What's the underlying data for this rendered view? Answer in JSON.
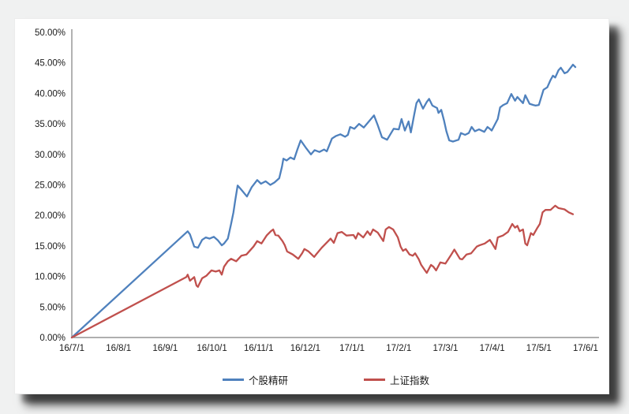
{
  "chart_data": {
    "type": "line",
    "title": "",
    "x_unit": "months since 16/7/1",
    "x_axis": {
      "tick_labels": [
        "16/7/1",
        "16/8/1",
        "16/9/1",
        "16/10/1",
        "16/11/1",
        "16/12/1",
        "17/1/1",
        "17/2/1",
        "17/3/1",
        "17/4/1",
        "17/5/1",
        "17/6/1"
      ],
      "range_months": [
        0,
        11
      ]
    },
    "y_axis": {
      "tick_labels": [
        "0.00%",
        "5.00%",
        "10.00%",
        "15.00%",
        "20.00%",
        "25.00%",
        "30.00%",
        "35.00%",
        "40.00%",
        "45.00%",
        "50.00%"
      ],
      "min": 0,
      "max": 50,
      "step": 5,
      "unit": "%"
    },
    "grid": "off",
    "axis_color": "#7f7f7f",
    "legend_position": "bottom",
    "series": [
      {
        "name": "个股精研",
        "color": "#4F81BD",
        "points": [
          [
            0,
            0
          ],
          [
            2.48,
            17.4
          ],
          [
            2.53,
            16.9
          ],
          [
            2.62,
            14.9
          ],
          [
            2.7,
            14.7
          ],
          [
            2.79,
            16.0
          ],
          [
            2.87,
            16.4
          ],
          [
            2.95,
            16.2
          ],
          [
            3.04,
            16.5
          ],
          [
            3.13,
            15.9
          ],
          [
            3.21,
            15.1
          ],
          [
            3.26,
            15.4
          ],
          [
            3.34,
            16.2
          ],
          [
            3.41,
            18.6
          ],
          [
            3.46,
            20.5
          ],
          [
            3.5,
            22.5
          ],
          [
            3.55,
            24.9
          ],
          [
            3.62,
            24.3
          ],
          [
            3.75,
            23.1
          ],
          [
            3.85,
            24.6
          ],
          [
            3.97,
            25.8
          ],
          [
            4.05,
            25.2
          ],
          [
            4.15,
            25.6
          ],
          [
            4.25,
            25.0
          ],
          [
            4.34,
            25.4
          ],
          [
            4.44,
            26.1
          ],
          [
            4.5,
            28.0
          ],
          [
            4.53,
            29.3
          ],
          [
            4.6,
            29.0
          ],
          [
            4.68,
            29.5
          ],
          [
            4.76,
            29.2
          ],
          [
            4.83,
            30.8
          ],
          [
            4.9,
            32.3
          ],
          [
            5.02,
            31.0
          ],
          [
            5.12,
            30.0
          ],
          [
            5.2,
            30.7
          ],
          [
            5.3,
            30.4
          ],
          [
            5.4,
            30.8
          ],
          [
            5.46,
            30.5
          ],
          [
            5.57,
            32.6
          ],
          [
            5.65,
            33.0
          ],
          [
            5.75,
            33.3
          ],
          [
            5.85,
            32.9
          ],
          [
            5.91,
            33.2
          ],
          [
            5.96,
            34.5
          ],
          [
            6.05,
            34.2
          ],
          [
            6.15,
            35.0
          ],
          [
            6.25,
            34.4
          ],
          [
            6.35,
            35.3
          ],
          [
            6.47,
            36.4
          ],
          [
            6.55,
            34.8
          ],
          [
            6.64,
            32.8
          ],
          [
            6.75,
            32.4
          ],
          [
            6.89,
            34.2
          ],
          [
            7.0,
            34.1
          ],
          [
            7.06,
            35.8
          ],
          [
            7.13,
            33.9
          ],
          [
            7.21,
            35.4
          ],
          [
            7.26,
            33.6
          ],
          [
            7.33,
            36.5
          ],
          [
            7.38,
            38.4
          ],
          [
            7.43,
            39.0
          ],
          [
            7.52,
            37.5
          ],
          [
            7.6,
            38.6
          ],
          [
            7.65,
            39.1
          ],
          [
            7.72,
            38.0
          ],
          [
            7.82,
            37.6
          ],
          [
            7.85,
            36.8
          ],
          [
            7.91,
            37.3
          ],
          [
            7.97,
            35.5
          ],
          [
            8.02,
            33.8
          ],
          [
            8.08,
            32.3
          ],
          [
            8.16,
            32.1
          ],
          [
            8.28,
            32.4
          ],
          [
            8.33,
            33.5
          ],
          [
            8.42,
            33.2
          ],
          [
            8.5,
            33.5
          ],
          [
            8.56,
            34.5
          ],
          [
            8.63,
            33.8
          ],
          [
            8.72,
            34.1
          ],
          [
            8.83,
            33.7
          ],
          [
            8.9,
            34.5
          ],
          [
            8.95,
            34.2
          ],
          [
            8.99,
            33.9
          ],
          [
            9.12,
            35.8
          ],
          [
            9.17,
            37.7
          ],
          [
            9.24,
            38.1
          ],
          [
            9.32,
            38.4
          ],
          [
            9.41,
            39.9
          ],
          [
            9.49,
            38.8
          ],
          [
            9.54,
            39.4
          ],
          [
            9.6,
            38.9
          ],
          [
            9.66,
            38.4
          ],
          [
            9.71,
            39.7
          ],
          [
            9.8,
            38.3
          ],
          [
            9.88,
            38.1
          ],
          [
            9.93,
            38.0
          ],
          [
            10.0,
            38.1
          ],
          [
            10.1,
            40.6
          ],
          [
            10.18,
            41.0
          ],
          [
            10.25,
            42.2
          ],
          [
            10.3,
            42.9
          ],
          [
            10.35,
            42.6
          ],
          [
            10.42,
            43.8
          ],
          [
            10.47,
            44.2
          ],
          [
            10.55,
            43.3
          ],
          [
            10.61,
            43.5
          ],
          [
            10.68,
            44.2
          ],
          [
            10.73,
            44.7
          ],
          [
            10.78,
            44.3
          ]
        ]
      },
      {
        "name": "上证指数",
        "color": "#C0504D",
        "points": [
          [
            0,
            0
          ],
          [
            2.45,
            9.9
          ],
          [
            2.48,
            10.3
          ],
          [
            2.53,
            9.3
          ],
          [
            2.62,
            9.9
          ],
          [
            2.67,
            8.5
          ],
          [
            2.7,
            8.3
          ],
          [
            2.79,
            9.7
          ],
          [
            2.88,
            10.1
          ],
          [
            2.99,
            11.0
          ],
          [
            3.08,
            10.8
          ],
          [
            3.16,
            11.0
          ],
          [
            3.21,
            10.3
          ],
          [
            3.26,
            11.6
          ],
          [
            3.34,
            12.5
          ],
          [
            3.41,
            12.9
          ],
          [
            3.52,
            12.5
          ],
          [
            3.63,
            13.4
          ],
          [
            3.74,
            13.6
          ],
          [
            3.89,
            14.9
          ],
          [
            3.97,
            15.8
          ],
          [
            4.06,
            15.4
          ],
          [
            4.17,
            16.7
          ],
          [
            4.26,
            17.4
          ],
          [
            4.31,
            17.7
          ],
          [
            4.36,
            16.8
          ],
          [
            4.42,
            16.7
          ],
          [
            4.51,
            15.8
          ],
          [
            4.56,
            15.1
          ],
          [
            4.61,
            14.1
          ],
          [
            4.73,
            13.6
          ],
          [
            4.85,
            12.9
          ],
          [
            4.93,
            13.8
          ],
          [
            4.98,
            14.5
          ],
          [
            5.07,
            14.1
          ],
          [
            5.19,
            13.2
          ],
          [
            5.24,
            13.7
          ],
          [
            5.35,
            14.7
          ],
          [
            5.49,
            15.8
          ],
          [
            5.54,
            16.2
          ],
          [
            5.61,
            15.5
          ],
          [
            5.69,
            17.1
          ],
          [
            5.78,
            17.3
          ],
          [
            5.88,
            16.7
          ],
          [
            6.03,
            16.8
          ],
          [
            6.08,
            16.2
          ],
          [
            6.13,
            17.1
          ],
          [
            6.24,
            16.4
          ],
          [
            6.33,
            17.4
          ],
          [
            6.39,
            16.8
          ],
          [
            6.45,
            17.7
          ],
          [
            6.55,
            17.2
          ],
          [
            6.67,
            15.8
          ],
          [
            6.72,
            17.7
          ],
          [
            6.79,
            18.1
          ],
          [
            6.88,
            17.7
          ],
          [
            6.98,
            16.4
          ],
          [
            7.04,
            14.9
          ],
          [
            7.09,
            14.2
          ],
          [
            7.15,
            14.5
          ],
          [
            7.23,
            13.6
          ],
          [
            7.3,
            13.4
          ],
          [
            7.35,
            13.8
          ],
          [
            7.43,
            12.8
          ],
          [
            7.48,
            11.9
          ],
          [
            7.57,
            10.9
          ],
          [
            7.6,
            10.6
          ],
          [
            7.69,
            11.9
          ],
          [
            7.74,
            11.6
          ],
          [
            7.8,
            11.0
          ],
          [
            7.89,
            12.3
          ],
          [
            8.0,
            12.1
          ],
          [
            8.11,
            13.4
          ],
          [
            8.19,
            14.4
          ],
          [
            8.31,
            12.9
          ],
          [
            8.36,
            12.8
          ],
          [
            8.45,
            13.6
          ],
          [
            8.55,
            13.8
          ],
          [
            8.67,
            14.9
          ],
          [
            8.73,
            15.1
          ],
          [
            8.84,
            15.4
          ],
          [
            8.95,
            16.0
          ],
          [
            9.0,
            15.4
          ],
          [
            9.07,
            14.5
          ],
          [
            9.12,
            16.4
          ],
          [
            9.23,
            16.7
          ],
          [
            9.34,
            17.3
          ],
          [
            9.43,
            18.6
          ],
          [
            9.49,
            18.0
          ],
          [
            9.54,
            18.3
          ],
          [
            9.59,
            17.4
          ],
          [
            9.66,
            17.7
          ],
          [
            9.71,
            15.4
          ],
          [
            9.75,
            15.1
          ],
          [
            9.83,
            17.1
          ],
          [
            9.88,
            16.8
          ],
          [
            9.97,
            18.0
          ],
          [
            10.02,
            18.6
          ],
          [
            10.08,
            20.5
          ],
          [
            10.14,
            20.9
          ],
          [
            10.25,
            20.9
          ],
          [
            10.35,
            21.6
          ],
          [
            10.42,
            21.2
          ],
          [
            10.55,
            21.0
          ],
          [
            10.64,
            20.5
          ],
          [
            10.73,
            20.2
          ]
        ]
      }
    ]
  }
}
